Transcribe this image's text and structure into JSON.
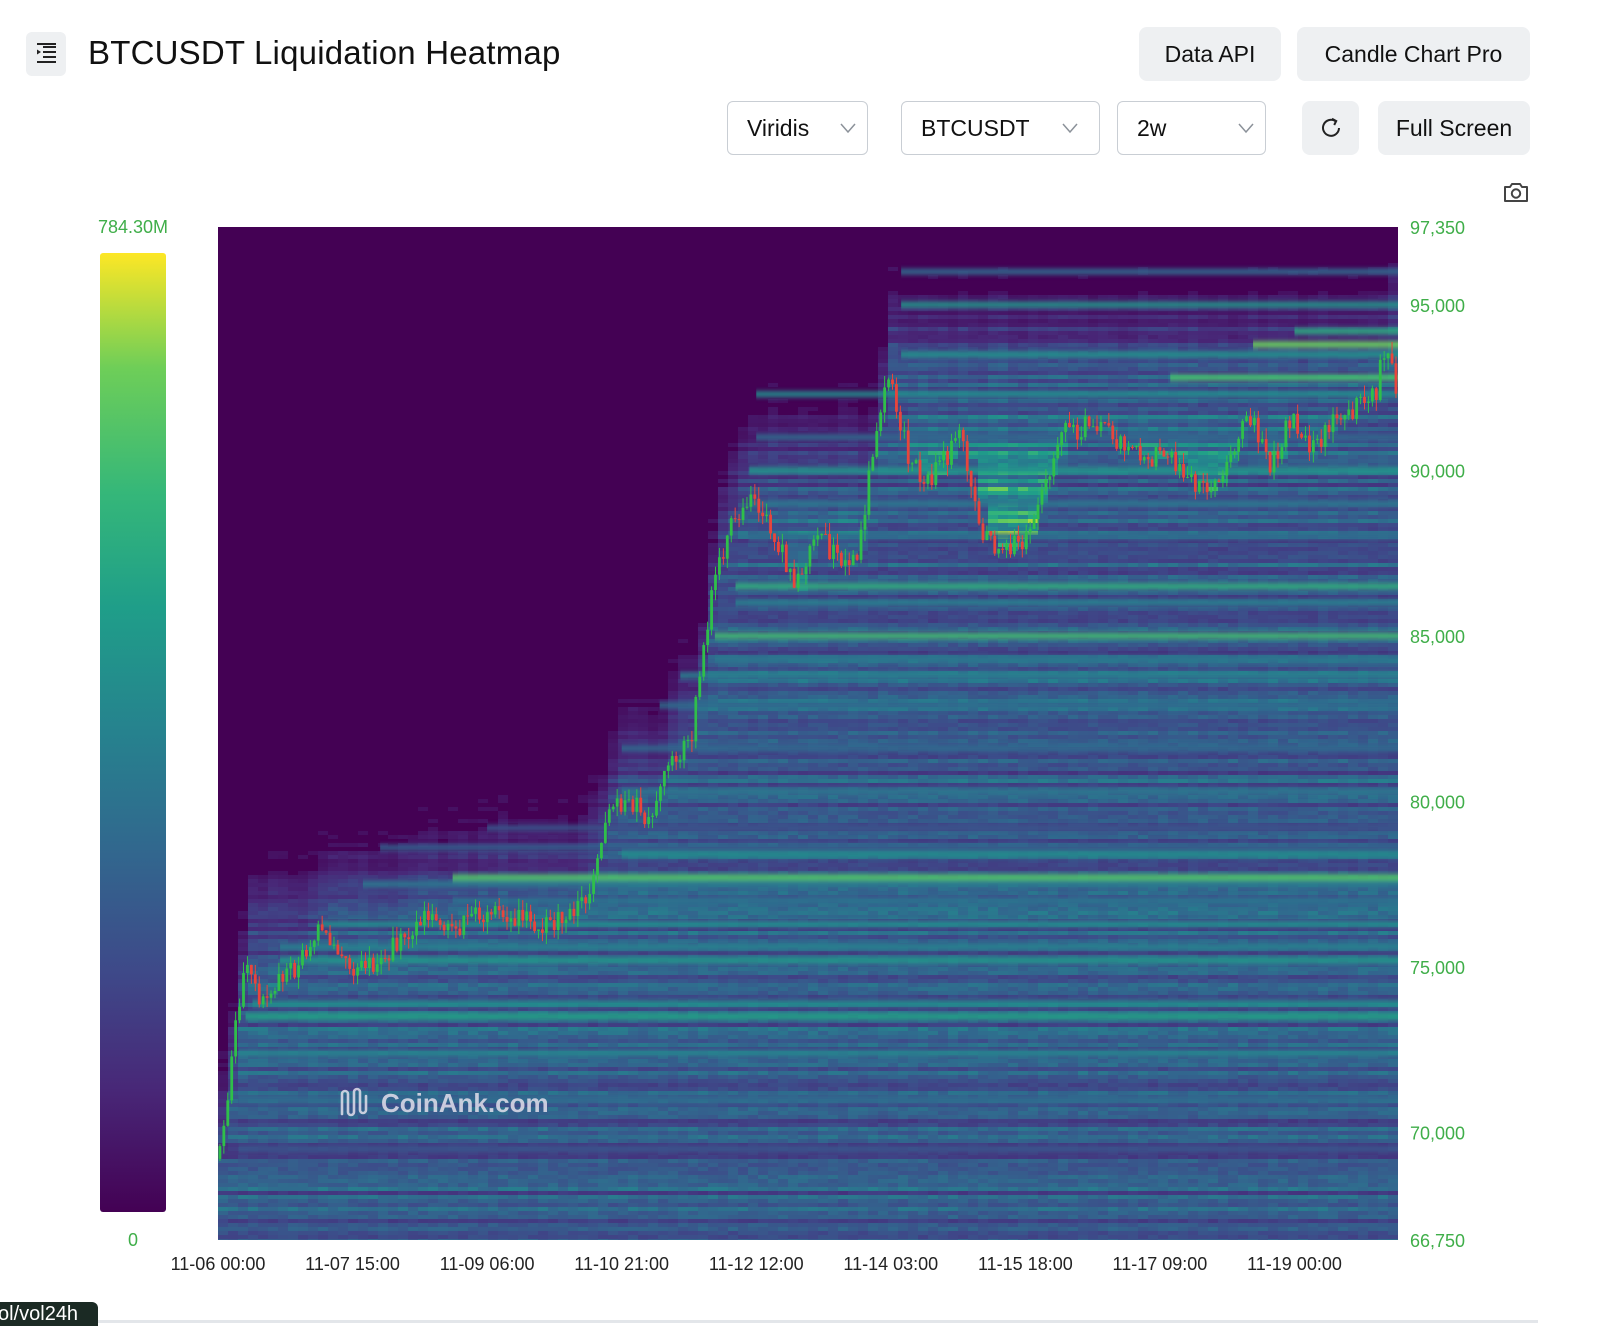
{
  "header": {
    "title": "BTCUSDT Liquidation Heatmap",
    "data_api_label": "Data API",
    "candle_chart_label": "Candle Chart Pro",
    "full_screen_label": "Full Screen",
    "menu_icon": "menu-indent-icon",
    "refresh_icon": "refresh-icon",
    "camera_icon": "camera-icon"
  },
  "controls": {
    "colorscale": "Viridis",
    "symbol": "BTCUSDT",
    "range": "2w"
  },
  "watermark": "CoinAnk.com",
  "bottom_tab": "ol/vol24h",
  "colors": {
    "low": "#440154",
    "mid": "#21918c",
    "high": "#fde725",
    "candle_up": "#2fbf4a",
    "candle_down": "#e8453c",
    "axis_text": "#3fae49"
  },
  "chart_data": {
    "type": "heatmap",
    "title": "BTCUSDT Liquidation Heatmap",
    "colorscale": "Viridis",
    "colorbar": {
      "min_label": "0",
      "max_label": "784.30M",
      "min": 0,
      "max": 784300000
    },
    "x_tick_labels": [
      "11-06 00:00",
      "11-07 15:00",
      "11-09 06:00",
      "11-10 21:00",
      "11-12 12:00",
      "11-14 03:00",
      "11-15 18:00",
      "11-17 09:00",
      "11-19 00:00"
    ],
    "x_range": [
      "2024-11-06 00:00",
      "2024-11-20 06:00"
    ],
    "y_tick_labels": [
      "97,350",
      "95,000",
      "90,000",
      "85,000",
      "80,000",
      "75,000",
      "70,000",
      "66,750"
    ],
    "y_ticks": [
      97350,
      95000,
      90000,
      85000,
      80000,
      75000,
      70000,
      66750
    ],
    "y_range": [
      66750,
      97350
    ],
    "price_path": [
      [
        "2024-11-06 00:00",
        69200
      ],
      [
        "2024-11-06 03:00",
        70800
      ],
      [
        "2024-11-06 06:00",
        73500
      ],
      [
        "2024-11-06 09:00",
        75200
      ],
      [
        "2024-11-06 13:00",
        73900
      ],
      [
        "2024-11-06 18:00",
        74700
      ],
      [
        "2024-11-07 00:00",
        75000
      ],
      [
        "2024-11-07 06:00",
        76100
      ],
      [
        "2024-11-07 12:00",
        75300
      ],
      [
        "2024-11-07 18:00",
        74900
      ],
      [
        "2024-11-08 00:00",
        75100
      ],
      [
        "2024-11-08 06:00",
        76000
      ],
      [
        "2024-11-08 12:00",
        76400
      ],
      [
        "2024-11-08 18:00",
        76200
      ],
      [
        "2024-11-09 00:00",
        76300
      ],
      [
        "2024-11-09 06:00",
        76700
      ],
      [
        "2024-11-09 12:00",
        76400
      ],
      [
        "2024-11-09 18:00",
        76500
      ],
      [
        "2024-11-10 00:00",
        76300
      ],
      [
        "2024-11-10 06:00",
        76500
      ],
      [
        "2024-11-10 12:00",
        77300
      ],
      [
        "2024-11-10 18:00",
        79600
      ],
      [
        "2024-11-11 00:00",
        80000
      ],
      [
        "2024-11-11 06:00",
        79400
      ],
      [
        "2024-11-11 12:00",
        81200
      ],
      [
        "2024-11-11 18:00",
        82100
      ],
      [
        "2024-11-12 00:00",
        86500
      ],
      [
        "2024-11-12 06:00",
        88600
      ],
      [
        "2024-11-12 12:00",
        89200
      ],
      [
        "2024-11-12 18:00",
        88000
      ],
      [
        "2024-11-13 00:00",
        86400
      ],
      [
        "2024-11-13 06:00",
        88400
      ],
      [
        "2024-11-13 12:00",
        87200
      ],
      [
        "2024-11-13 18:00",
        87600
      ],
      [
        "2024-11-14 00:00",
        91500
      ],
      [
        "2024-11-14 03:00",
        92900
      ],
      [
        "2024-11-14 09:00",
        90200
      ],
      [
        "2024-11-14 15:00",
        89700
      ],
      [
        "2024-11-15 00:00",
        91100
      ],
      [
        "2024-11-15 06:00",
        88200
      ],
      [
        "2024-11-15 12:00",
        87600
      ],
      [
        "2024-11-15 18:00",
        87800
      ],
      [
        "2024-11-16 00:00",
        89800
      ],
      [
        "2024-11-16 06:00",
        91100
      ],
      [
        "2024-11-16 12:00",
        91300
      ],
      [
        "2024-11-16 18:00",
        91100
      ],
      [
        "2024-11-17 00:00",
        90800
      ],
      [
        "2024-11-17 06:00",
        90300
      ],
      [
        "2024-11-17 12:00",
        90600
      ],
      [
        "2024-11-17 18:00",
        89800
      ],
      [
        "2024-11-18 00:00",
        89300
      ],
      [
        "2024-11-18 06:00",
        90600
      ],
      [
        "2024-11-18 12:00",
        91600
      ],
      [
        "2024-11-18 18:00",
        90100
      ],
      [
        "2024-11-19 00:00",
        91700
      ],
      [
        "2024-11-19 06:00",
        90600
      ],
      [
        "2024-11-19 12:00",
        91400
      ],
      [
        "2024-11-19 18:00",
        91900
      ],
      [
        "2024-11-20 00:00",
        92300
      ],
      [
        "2024-11-20 03:00",
        93800
      ],
      [
        "2024-11-20 06:00",
        92600
      ]
    ],
    "liquidation_bands": [
      [
        "2024-11-06 06:00",
        69500,
        0.3
      ],
      [
        "2024-11-06 06:00",
        71000,
        0.4
      ],
      [
        "2024-11-06 06:00",
        72400,
        0.5
      ],
      [
        "2024-11-06 08:00",
        73500,
        0.66
      ],
      [
        "2024-11-06 10:00",
        73900,
        0.55
      ],
      [
        "2024-11-06 18:00",
        75200,
        0.6
      ],
      [
        "2024-11-06 18:00",
        75600,
        0.5
      ],
      [
        "2024-11-07 06:00",
        76300,
        0.55
      ],
      [
        "2024-11-07 18:00",
        77500,
        0.45
      ],
      [
        "2024-11-07 23:00",
        78600,
        0.35
      ],
      [
        "2024-11-08 20:00",
        77000,
        0.42
      ],
      [
        "2024-11-08 20:00",
        77700,
        0.82
      ],
      [
        "2024-11-09 06:00",
        79200,
        0.3
      ],
      [
        "2024-11-10 21:00",
        78400,
        0.55
      ],
      [
        "2024-11-10 21:00",
        80300,
        0.45
      ],
      [
        "2024-11-10 21:00",
        81600,
        0.4
      ],
      [
        "2024-11-11 08:00",
        82900,
        0.42
      ],
      [
        "2024-11-11 14:00",
        83800,
        0.5
      ],
      [
        "2024-11-12 00:00",
        84300,
        0.45
      ],
      [
        "2024-11-12 00:00",
        85000,
        0.78
      ],
      [
        "2024-11-12 06:00",
        86000,
        0.5
      ],
      [
        "2024-11-12 06:00",
        86500,
        0.72
      ],
      [
        "2024-11-12 10:00",
        88000,
        0.4
      ],
      [
        "2024-11-12 10:00",
        89000,
        0.45
      ],
      [
        "2024-11-12 10:00",
        90000,
        0.6
      ],
      [
        "2024-11-12 12:00",
        91000,
        0.4
      ],
      [
        "2024-11-12 12:00",
        92300,
        0.55
      ],
      [
        "2024-11-14 06:00",
        93500,
        0.58
      ],
      [
        "2024-11-14 06:00",
        95000,
        0.6
      ],
      [
        "2024-11-14 06:00",
        96000,
        0.4
      ],
      [
        "2024-11-17 12:00",
        92800,
        0.8
      ],
      [
        "2024-11-18 12:00",
        93800,
        0.88
      ],
      [
        "2024-11-19 00:00",
        94200,
        0.7
      ]
    ]
  }
}
